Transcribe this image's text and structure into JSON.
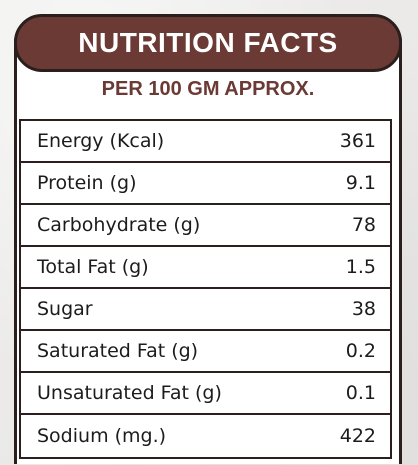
{
  "header": {
    "title": "NUTRITION FACTS"
  },
  "subtitle": "PER 100 GM APPROX.",
  "rows": [
    {
      "label": "Energy (Kcal)",
      "value": "361"
    },
    {
      "label": "Protein (g)",
      "value": "9.1"
    },
    {
      "label": "Carbohydrate (g)",
      "value": "78"
    },
    {
      "label": "Total Fat (g)",
      "value": "1.5"
    },
    {
      "label": "Sugar",
      "value": "38"
    },
    {
      "label": "Saturated Fat (g)",
      "value": "0.2"
    },
    {
      "label": "Unsaturated Fat (g)",
      "value": "0.1"
    },
    {
      "label": "Sodium (mg.)",
      "value": "422"
    }
  ],
  "colors": {
    "header_bg": "#6c3a35",
    "accent_text": "#6c3a35",
    "border": "#2a1f1c"
  }
}
